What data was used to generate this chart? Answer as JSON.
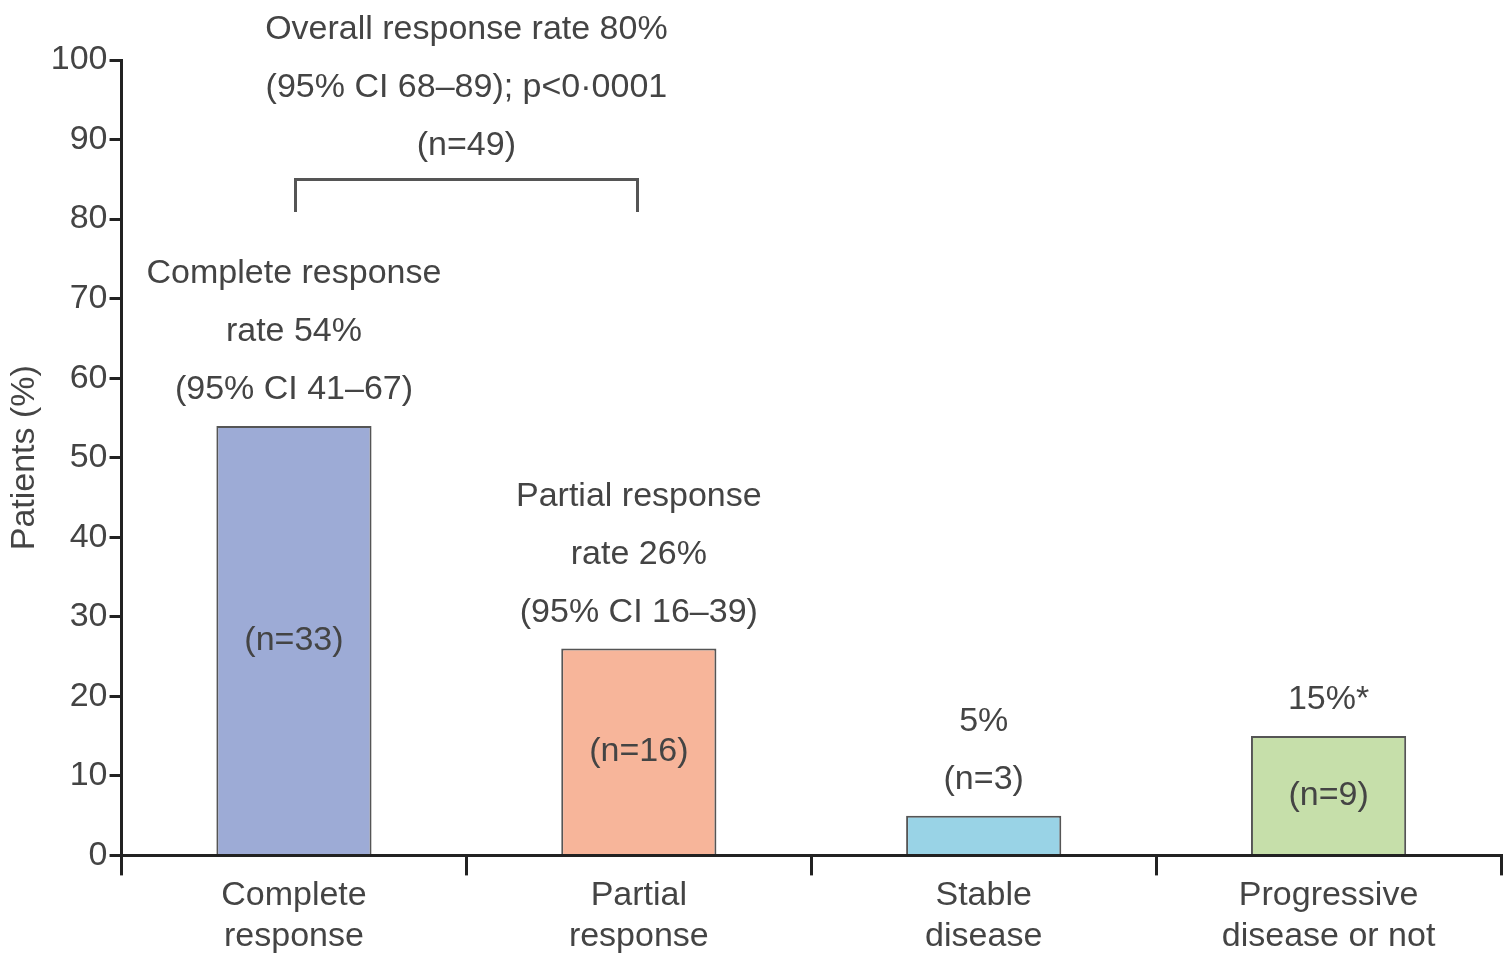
{
  "chart_data": {
    "type": "bar",
    "ylabel": "Patients (%)",
    "categories": [
      "Complete response",
      "Partial response",
      "Stable disease",
      "Progressive disease or not"
    ],
    "values": [
      54,
      26,
      5,
      15
    ],
    "value_labels": [
      "Complete response\nrate 54%\n(95% CI 41–67)",
      "Partial response\nrate 26%\n(95% CI 16–39)",
      "5%\n(n=3)",
      "15%*"
    ],
    "colors": [
      "#9dabd6",
      "#f7b59a",
      "#99d3e6",
      "#c6dfaa"
    ],
    "ylim": [
      0,
      100
    ],
    "yticks": [
      0,
      10,
      20,
      30,
      40,
      50,
      60,
      70,
      80,
      90,
      100
    ],
    "grid": false,
    "legend": false,
    "annotations": [
      "Overall response rate 80%\n(95% CI 68–89); p<0·0001\n(n=49)",
      "(n=33)",
      "(n=16)",
      "(n=9)"
    ]
  }
}
